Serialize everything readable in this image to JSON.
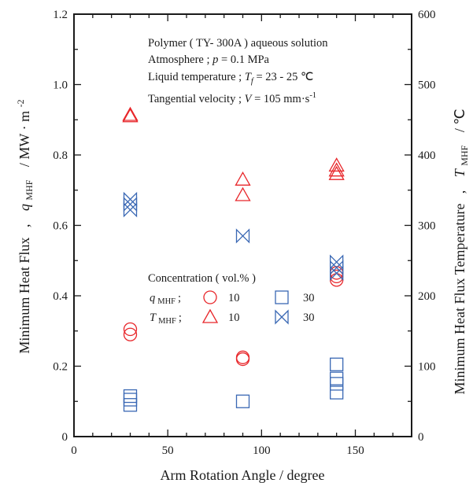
{
  "chart_data": {
    "type": "scatter",
    "x_axis": {
      "label": "Arm Rotation Angle / degree",
      "range": [
        0,
        180
      ],
      "ticks": [
        0,
        50,
        100,
        150
      ],
      "tick_labels": [
        "0",
        "50",
        "100",
        "150"
      ]
    },
    "y_left_axis": {
      "label": "Minimum Heat Flux , q MHF / MW · m-2",
      "label_main": "Minimum Heat Flux",
      "label_sep": ",",
      "label_symbol": "q",
      "label_sub": "MHF",
      "label_unit": "/ MW · m",
      "label_unit_sup": "-2",
      "range": [
        0,
        1.2
      ],
      "ticks": [
        0,
        0.2,
        0.4,
        0.6,
        0.8,
        1.0,
        1.2
      ],
      "tick_labels": [
        "0",
        "0.2",
        "0.4",
        "0.6",
        "0.8",
        "1.0",
        "1.2"
      ]
    },
    "y_right_axis": {
      "label": "Minimum Heat Flux Temperature , T MHF / ℃",
      "label_main": "Minimum Heat Flux Temperature",
      "label_sep": ",",
      "label_symbol": "T",
      "label_sub": "MHF",
      "label_unit": "/ ℃",
      "range": [
        0,
        600
      ],
      "ticks": [
        0,
        100,
        200,
        300,
        400,
        500,
        600
      ],
      "tick_labels": [
        "0",
        "100",
        "200",
        "300",
        "400",
        "500",
        "600"
      ]
    },
    "annotations": {
      "line1": "Polymer ( TY- 300A ) aqueous solution",
      "line2_prefix": "Atmosphere ; ",
      "line2_symbol": "p",
      "line2_value": " = 0.1 MPa",
      "line3_prefix": "Liquid temperature ; ",
      "line3_symbol": "T",
      "line3_sub": "f",
      "line3_value": " = 23 - 25 ℃",
      "line4_prefix": "Tangential velocity ; ",
      "line4_symbol": "V",
      "line4_value": " = 105 mm·s",
      "line4_sup": "-1"
    },
    "legend": {
      "title": "Concentration ( vol.% )",
      "q_symbol": "q",
      "q_sub": "MHF",
      "t_symbol": "T",
      "t_sub": "MHF",
      "sep": ";",
      "conc_10": "10",
      "conc_30": "30"
    },
    "series": [
      {
        "name": "q MHF 10 vol.%",
        "marker": "circle",
        "color": "#e8262a",
        "axis": "left",
        "points": [
          [
            30,
            0.305
          ],
          [
            30,
            0.29
          ],
          [
            90,
            0.225
          ],
          [
            90,
            0.22
          ],
          [
            140,
            0.465
          ],
          [
            140,
            0.455
          ],
          [
            140,
            0.445
          ]
        ]
      },
      {
        "name": "q MHF 30 vol.%",
        "marker": "square",
        "color": "#3a68b4",
        "axis": "left",
        "points": [
          [
            30,
            0.115
          ],
          [
            30,
            0.105
          ],
          [
            30,
            0.09
          ],
          [
            90,
            0.1
          ],
          [
            140,
            0.205
          ],
          [
            140,
            0.165
          ],
          [
            140,
            0.15
          ],
          [
            140,
            0.125
          ]
        ]
      },
      {
        "name": "T MHF 10 vol.%",
        "marker": "triangle",
        "color": "#e8262a",
        "axis": "right",
        "points": [
          [
            30,
            457
          ],
          [
            30,
            455
          ],
          [
            90,
            365
          ],
          [
            90,
            343
          ],
          [
            140,
            385
          ],
          [
            140,
            378
          ],
          [
            140,
            373
          ]
        ]
      },
      {
        "name": "T MHF 30 vol.%",
        "marker": "bowtie",
        "color": "#3a68b4",
        "axis": "right",
        "points": [
          [
            30,
            337
          ],
          [
            30,
            330
          ],
          [
            30,
            322
          ],
          [
            90,
            285
          ],
          [
            140,
            248
          ],
          [
            140,
            240
          ],
          [
            140,
            232
          ]
        ]
      }
    ],
    "grid": false
  }
}
